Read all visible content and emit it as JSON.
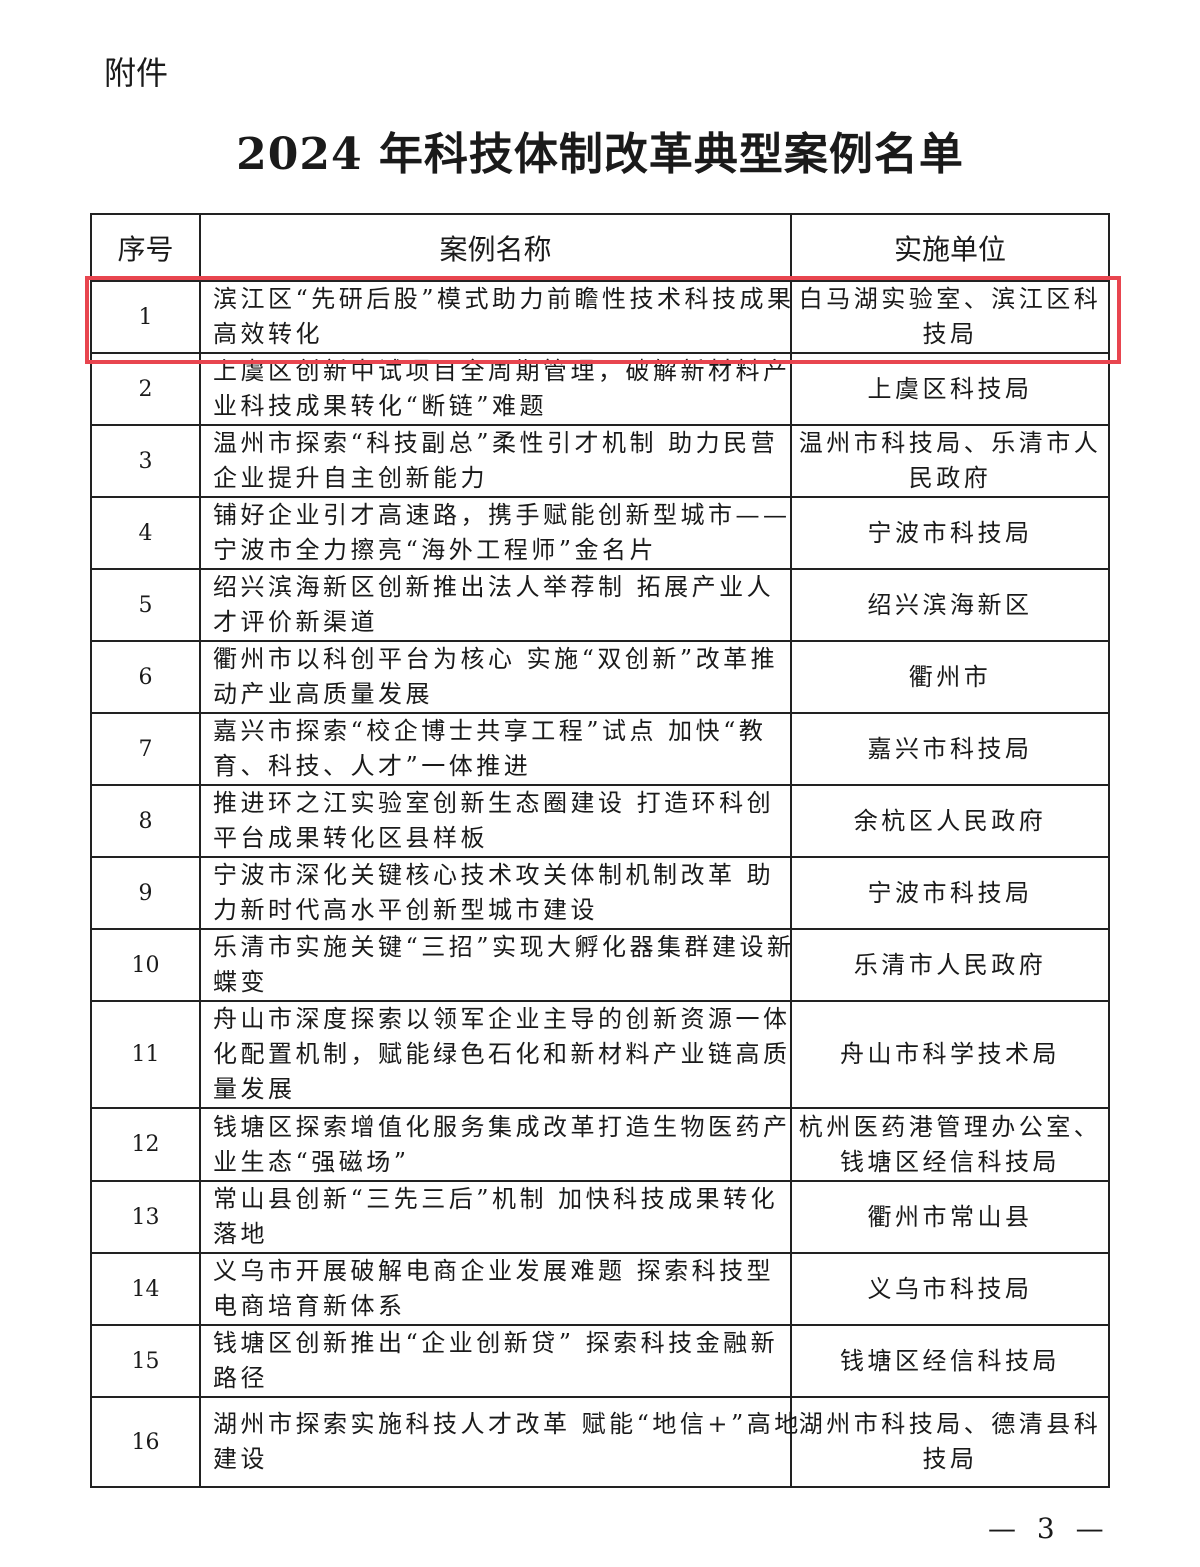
{
  "attachment_label": "附件",
  "title": "2024 年科技体制改革典型案例名单",
  "table": {
    "headers": [
      "序号",
      "案例名称",
      "实施单位"
    ],
    "rows": [
      {
        "no": "1",
        "name": [
          "滨江区“先研后股”模式助力前瞻性技术科技成果",
          "高效转化"
        ],
        "unit": [
          "白马湖实验室、滨江区科",
          "技局"
        ]
      },
      {
        "no": "2",
        "name": [
          "上虞区创新中试项目全周期管理，破解新材料产",
          "业科技成果转化“断链”难题"
        ],
        "unit": [
          "上虞区科技局"
        ]
      },
      {
        "no": "3",
        "name": [
          "温州市探索“科技副总”柔性引才机制  助力民营",
          "企业提升自主创新能力"
        ],
        "unit": [
          "温州市科技局、乐清市人",
          "民政府"
        ]
      },
      {
        "no": "4",
        "name": [
          "铺好企业引才高速路，携手赋能创新型城市——",
          "宁波市全力擦亮“海外工程师”金名片"
        ],
        "unit": [
          "宁波市科技局"
        ]
      },
      {
        "no": "5",
        "name": [
          "绍兴滨海新区创新推出法人举荐制  拓展产业人",
          "才评价新渠道"
        ],
        "unit": [
          "绍兴滨海新区"
        ]
      },
      {
        "no": "6",
        "name": [
          "衢州市以科创平台为核心  实施“双创新”改革推",
          "动产业高质量发展"
        ],
        "unit": [
          "衢州市"
        ]
      },
      {
        "no": "7",
        "name": [
          "嘉兴市探索“校企博士共享工程”试点  加快“教",
          "育、科技、人才”一体推进"
        ],
        "unit": [
          "嘉兴市科技局"
        ]
      },
      {
        "no": "8",
        "name": [
          "推进环之江实验室创新生态圈建设  打造环科创",
          "平台成果转化区县样板"
        ],
        "unit": [
          "余杭区人民政府"
        ]
      },
      {
        "no": "9",
        "name": [
          "宁波市深化关键核心技术攻关体制机制改革  助",
          "力新时代高水平创新型城市建设"
        ],
        "unit": [
          "宁波市科技局"
        ]
      },
      {
        "no": "10",
        "name": [
          "乐清市实施关键“三招”实现大孵化器集群建设新",
          "蝶变"
        ],
        "unit": [
          "乐清市人民政府"
        ]
      },
      {
        "no": "11",
        "name": [
          "舟山市深度探索以领军企业主导的创新资源一体",
          "化配置机制，赋能绿色石化和新材料产业链高质",
          "量发展"
        ],
        "unit": [
          "舟山市科学技术局"
        ]
      },
      {
        "no": "12",
        "name": [
          "钱塘区探索增值化服务集成改革打造生物医药产",
          "业生态“强磁场”"
        ],
        "unit": [
          "杭州医药港管理办公室、",
          "钱塘区经信科技局"
        ]
      },
      {
        "no": "13",
        "name": [
          "常山县创新“三先三后”机制  加快科技成果转化",
          "落地"
        ],
        "unit": [
          "衢州市常山县"
        ]
      },
      {
        "no": "14",
        "name": [
          "义乌市开展破解电商企业发展难题  探索科技型",
          "电商培育新体系"
        ],
        "unit": [
          "义乌市科技局"
        ]
      },
      {
        "no": "15",
        "name": [
          "钱塘区创新推出“企业创新贷” 探索科技金融新",
          "路径"
        ],
        "unit": [
          "钱塘区经信科技局"
        ]
      },
      {
        "no": "16",
        "name": [
          "湖州市探索实施科技人才改革  赋能“地信+”高地",
          "建设"
        ],
        "unit": [
          "湖州市科技局、德清县科",
          "技局"
        ]
      }
    ],
    "highlighted_row": 1,
    "highlight_color": "#e8454f"
  },
  "page_number": "— 3 —"
}
